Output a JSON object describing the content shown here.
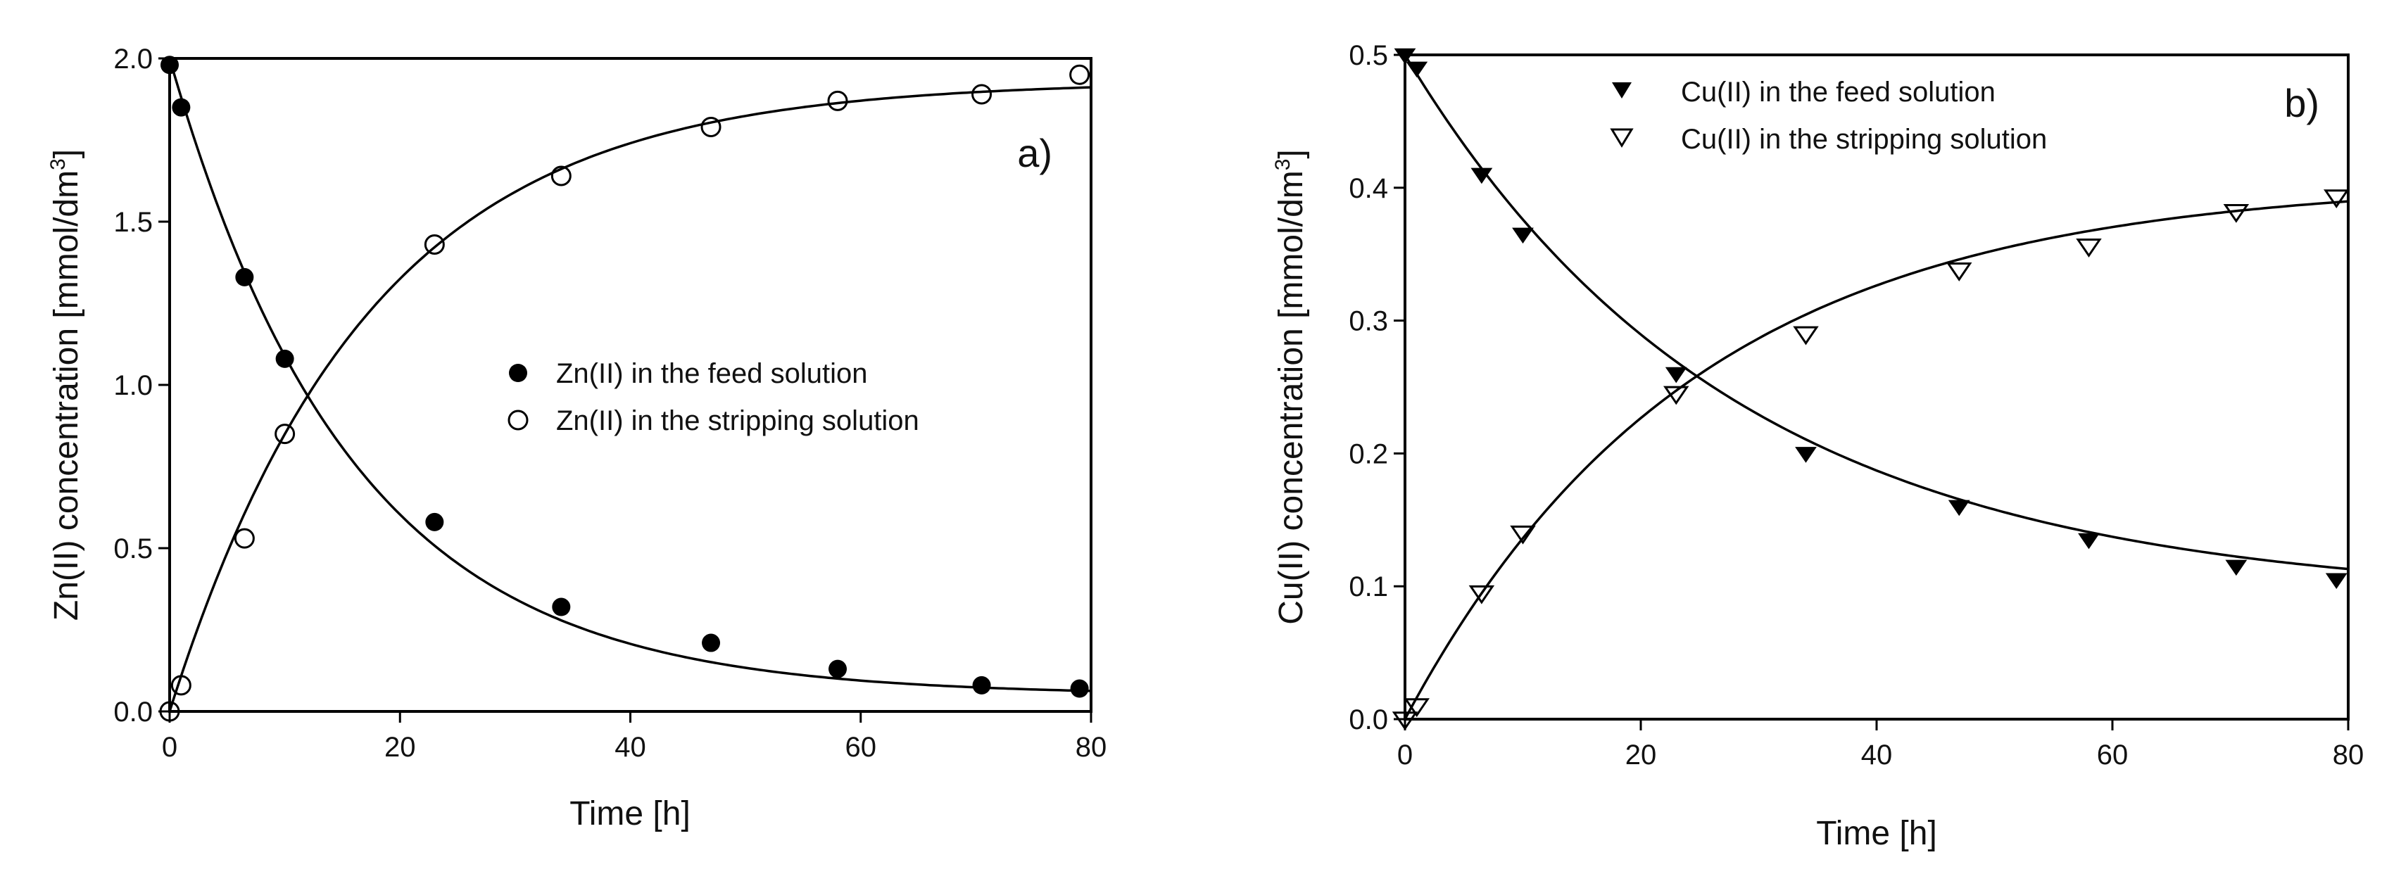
{
  "chart_data": [
    {
      "type": "scatter",
      "panel_label": "a)",
      "xlabel": "Time [h]",
      "ylabel": "Zn(II) concentration [mmol/dm",
      "ylabel_sup": "3",
      "ylabel_end": "]",
      "xlim": [
        0,
        80
      ],
      "ylim": [
        0,
        2.0
      ],
      "xticks": [
        "0",
        "20",
        "40",
        "60",
        "80"
      ],
      "yticks": [
        "0.0",
        "0.5",
        "1.0",
        "1.5",
        "2.0"
      ],
      "legend_placement": "center-right",
      "grid": false,
      "series": [
        {
          "name": "Zn(II) in the feed solution",
          "marker": "filled-circle",
          "x": [
            0,
            1,
            6.5,
            10,
            23,
            34,
            47,
            58,
            70.5,
            79
          ],
          "y": [
            1.98,
            1.85,
            1.33,
            1.08,
            0.58,
            0.32,
            0.21,
            0.13,
            0.08,
            0.07
          ],
          "fit": {
            "model": "decay",
            "a": 1.95,
            "k": 0.063,
            "c": 0.05
          }
        },
        {
          "name": "Zn(II) in the stripping solution",
          "marker": "open-circle",
          "x": [
            0,
            1,
            6.5,
            10,
            23,
            34,
            47,
            58,
            70.5,
            79
          ],
          "y": [
            0.0,
            0.08,
            0.53,
            0.85,
            1.43,
            1.64,
            1.79,
            1.87,
            1.89,
            1.95
          ],
          "fit": {
            "model": "rise",
            "a": 1.93,
            "k": 0.058,
            "c": 0
          }
        }
      ]
    },
    {
      "type": "scatter",
      "panel_label": "b)",
      "xlabel": "Time [h]",
      "ylabel": "Cu(II) concentration [mmol/dm",
      "ylabel_sup": "3",
      "ylabel_end": "]",
      "xlim": [
        0,
        80
      ],
      "ylim": [
        0,
        0.5
      ],
      "xticks": [
        "0",
        "20",
        "40",
        "60",
        "80"
      ],
      "yticks": [
        "0.0",
        "0.1",
        "0.2",
        "0.3",
        "0.4",
        "0.5"
      ],
      "legend_placement": "top-center",
      "grid": false,
      "series": [
        {
          "name": "Cu(II) in the feed solution",
          "marker": "filled-triangle-down",
          "x": [
            0,
            1,
            6.5,
            10,
            23,
            34,
            47,
            58,
            70.5,
            79
          ],
          "y": [
            0.5,
            0.49,
            0.41,
            0.365,
            0.26,
            0.2,
            0.16,
            0.135,
            0.115,
            0.105
          ],
          "fit": {
            "model": "decay",
            "a": 0.41,
            "k": 0.036,
            "c": 0.09
          }
        },
        {
          "name": "Cu(II) in the stripping solution",
          "marker": "open-triangle-down",
          "x": [
            0,
            1,
            6.5,
            10,
            23,
            34,
            47,
            58,
            70.5,
            79
          ],
          "y": [
            0.0,
            0.01,
            0.095,
            0.14,
            0.245,
            0.29,
            0.338,
            0.356,
            0.382,
            0.393
          ],
          "fit": {
            "model": "rise",
            "a": 0.405,
            "k": 0.041,
            "c": 0
          }
        }
      ]
    }
  ]
}
